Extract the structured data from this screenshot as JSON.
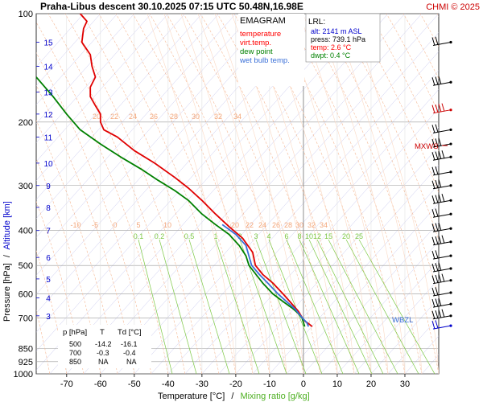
{
  "header": {
    "title": "Praha-Libus  descent  30.10.2025 07:15 UTC  50.48N,16.98E",
    "copyright": "CHMI © 2025"
  },
  "legend": {
    "title": "EMAGRAM",
    "items": [
      {
        "label": "temperature",
        "color": "#ff0000"
      },
      {
        "label": "virt.temp.",
        "color": "#ff0000"
      },
      {
        "label": "dew point",
        "color": "#008000"
      },
      {
        "label": "wet bulb temp.",
        "color": "#3a6fd8"
      }
    ]
  },
  "lrl": {
    "title": "LRL:",
    "alt": "alt: 2141 m ASL",
    "press": "press: 739.1 hPa",
    "temp": "temp: 2.6 °C",
    "dwpt": "dwpt: 0.4 °C"
  },
  "levels_table": {
    "headers": [
      "p [hPa]",
      "T",
      "Td [°C]"
    ],
    "rows": [
      [
        "500",
        "-14.2",
        "-16.1"
      ],
      [
        "700",
        "-0.3",
        "-0.4"
      ],
      [
        "850",
        "NA",
        "NA"
      ]
    ]
  },
  "markers": {
    "mxws": "MXWS",
    "wbzl": "WBZL"
  },
  "axes": {
    "ylabel_pressure": "Pressure [hPa]",
    "ylabel_sep": "/",
    "ylabel_altitude": "Altitude [km]",
    "xlabel_temp": "Temperature [°C]",
    "xlabel_sep": "/",
    "xlabel_mix": "Mixing ratio [g/kg]"
  },
  "chart_data": {
    "type": "line",
    "x_ticks": [
      -70,
      -60,
      -50,
      -40,
      -30,
      -20,
      -10,
      0,
      10,
      20,
      30
    ],
    "xlim": [
      -79,
      40
    ],
    "y_scale": "log",
    "ylim": [
      1000,
      100
    ],
    "pressure_ticks": [
      100,
      200,
      300,
      400,
      500,
      600,
      700,
      850,
      925,
      1000
    ],
    "altitude_ticks_km": [
      {
        "km": 3,
        "p": 690
      },
      {
        "km": 4,
        "p": 615
      },
      {
        "km": 5,
        "p": 545
      },
      {
        "km": 6,
        "p": 475
      },
      {
        "km": 7,
        "p": 400
      },
      {
        "km": 8,
        "p": 345
      },
      {
        "km": 9,
        "p": 300
      },
      {
        "km": 10,
        "p": 260
      },
      {
        "km": 11,
        "p": 220
      },
      {
        "km": 12,
        "p": 190
      },
      {
        "km": 13,
        "p": 165
      },
      {
        "km": 14,
        "p": 140
      },
      {
        "km": 15,
        "p": 120
      }
    ],
    "dry_adiabat_labels_upper": [
      "20",
      "22",
      "24",
      "26",
      "28",
      "30",
      "32",
      "34"
    ],
    "dry_adiabat_labels_lower": [
      "-10",
      "-5",
      "0",
      "5",
      "10",
      "20",
      "22",
      "24",
      "26",
      "28",
      "30",
      "32",
      "34"
    ],
    "mixing_ratio_labels": [
      "0.1",
      "0.2",
      "0.5",
      "1",
      "2",
      "3",
      "4",
      "6",
      "8",
      "10",
      "12",
      "15",
      "20",
      "25"
    ],
    "series": [
      {
        "name": "temperature",
        "color": "#e00000",
        "points": [
          [
            -66,
            100
          ],
          [
            -64,
            105
          ],
          [
            -65,
            110
          ],
          [
            -65.5,
            120
          ],
          [
            -63,
            130
          ],
          [
            -62.5,
            140
          ],
          [
            -61.5,
            150
          ],
          [
            -63,
            160
          ],
          [
            -63,
            170
          ],
          [
            -61.5,
            180
          ],
          [
            -60,
            190
          ],
          [
            -60,
            200
          ],
          [
            -59,
            210
          ],
          [
            -55,
            220
          ],
          [
            -50,
            240
          ],
          [
            -44,
            260
          ],
          [
            -38,
            285
          ],
          [
            -34,
            305
          ],
          [
            -30,
            330
          ],
          [
            -26,
            360
          ],
          [
            -22,
            390
          ],
          [
            -18,
            420
          ],
          [
            -15,
            460
          ],
          [
            -14.2,
            500
          ],
          [
            -12,
            530
          ],
          [
            -9,
            560
          ],
          [
            -6,
            600
          ],
          [
            -4,
            630
          ],
          [
            -1.5,
            670
          ],
          [
            -0.3,
            700
          ],
          [
            0.5,
            715
          ],
          [
            1.5,
            725
          ],
          [
            2.6,
            739
          ]
        ]
      },
      {
        "name": "dew point",
        "color": "#008000",
        "points": [
          [
            -79,
            150
          ],
          [
            -74,
            170
          ],
          [
            -70,
            190
          ],
          [
            -66,
            210
          ],
          [
            -60,
            230
          ],
          [
            -54,
            250
          ],
          [
            -48,
            270
          ],
          [
            -43,
            290
          ],
          [
            -38,
            310
          ],
          [
            -34,
            330
          ],
          [
            -30,
            360
          ],
          [
            -26,
            385
          ],
          [
            -22,
            410
          ],
          [
            -19,
            440
          ],
          [
            -17,
            470
          ],
          [
            -16.1,
            500
          ],
          [
            -14,
            530
          ],
          [
            -12,
            560
          ],
          [
            -9,
            600
          ],
          [
            -6,
            630
          ],
          [
            -3,
            660
          ],
          [
            -1.5,
            680
          ],
          [
            -0.4,
            700
          ],
          [
            0,
            720
          ],
          [
            0.4,
            739
          ]
        ]
      },
      {
        "name": "wet bulb temp.",
        "color": "#3a6fd8",
        "points": [
          [
            -24,
            385
          ],
          [
            -20,
            410
          ],
          [
            -17,
            440
          ],
          [
            -15.3,
            500
          ],
          [
            -13,
            530
          ],
          [
            -10.5,
            560
          ],
          [
            -7.5,
            600
          ],
          [
            -5,
            630
          ],
          [
            -2.5,
            660
          ],
          [
            -0.3,
            700
          ],
          [
            1,
            720
          ],
          [
            1.5,
            739
          ]
        ]
      }
    ]
  },
  "wind_barbs": [
    {
      "p": 120
    },
    {
      "p": 155
    },
    {
      "p": 185
    },
    {
      "p": 210
    },
    {
      "p": 230
    },
    {
      "p": 250
    },
    {
      "p": 275
    },
    {
      "p": 300
    },
    {
      "p": 330
    },
    {
      "p": 360
    },
    {
      "p": 395
    },
    {
      "p": 430
    },
    {
      "p": 470
    },
    {
      "p": 510
    },
    {
      "p": 550
    },
    {
      "p": 595
    },
    {
      "p": 640
    },
    {
      "p": 690
    },
    {
      "p": 735
    }
  ]
}
